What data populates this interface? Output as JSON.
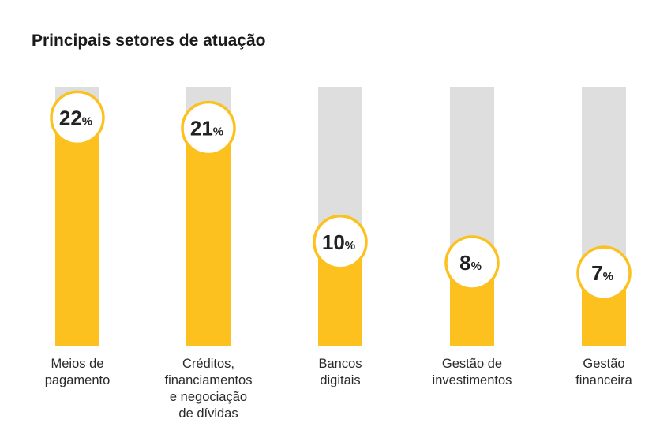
{
  "title": "Principais setores de atuação",
  "chart_data": {
    "type": "bar",
    "title": "Principais setores de atuação",
    "categories": [
      "Meios de\npagamento",
      "Créditos,\nfinanciamentos\ne negociação\nde dívidas",
      "Bancos\ndigitais",
      "Gestão de\ninvestimentos",
      "Gestão\nfinanceira"
    ],
    "values": [
      22,
      21,
      10,
      8,
      7
    ],
    "value_suffix": "%",
    "ylim": [
      0,
      25
    ],
    "grid": false,
    "legend": "none",
    "colors": {
      "bar": "#FCC11E",
      "track": "#DEDEDE",
      "bubble_border": "#FCC11E",
      "bubble_fill": "#FFFFFF"
    }
  }
}
